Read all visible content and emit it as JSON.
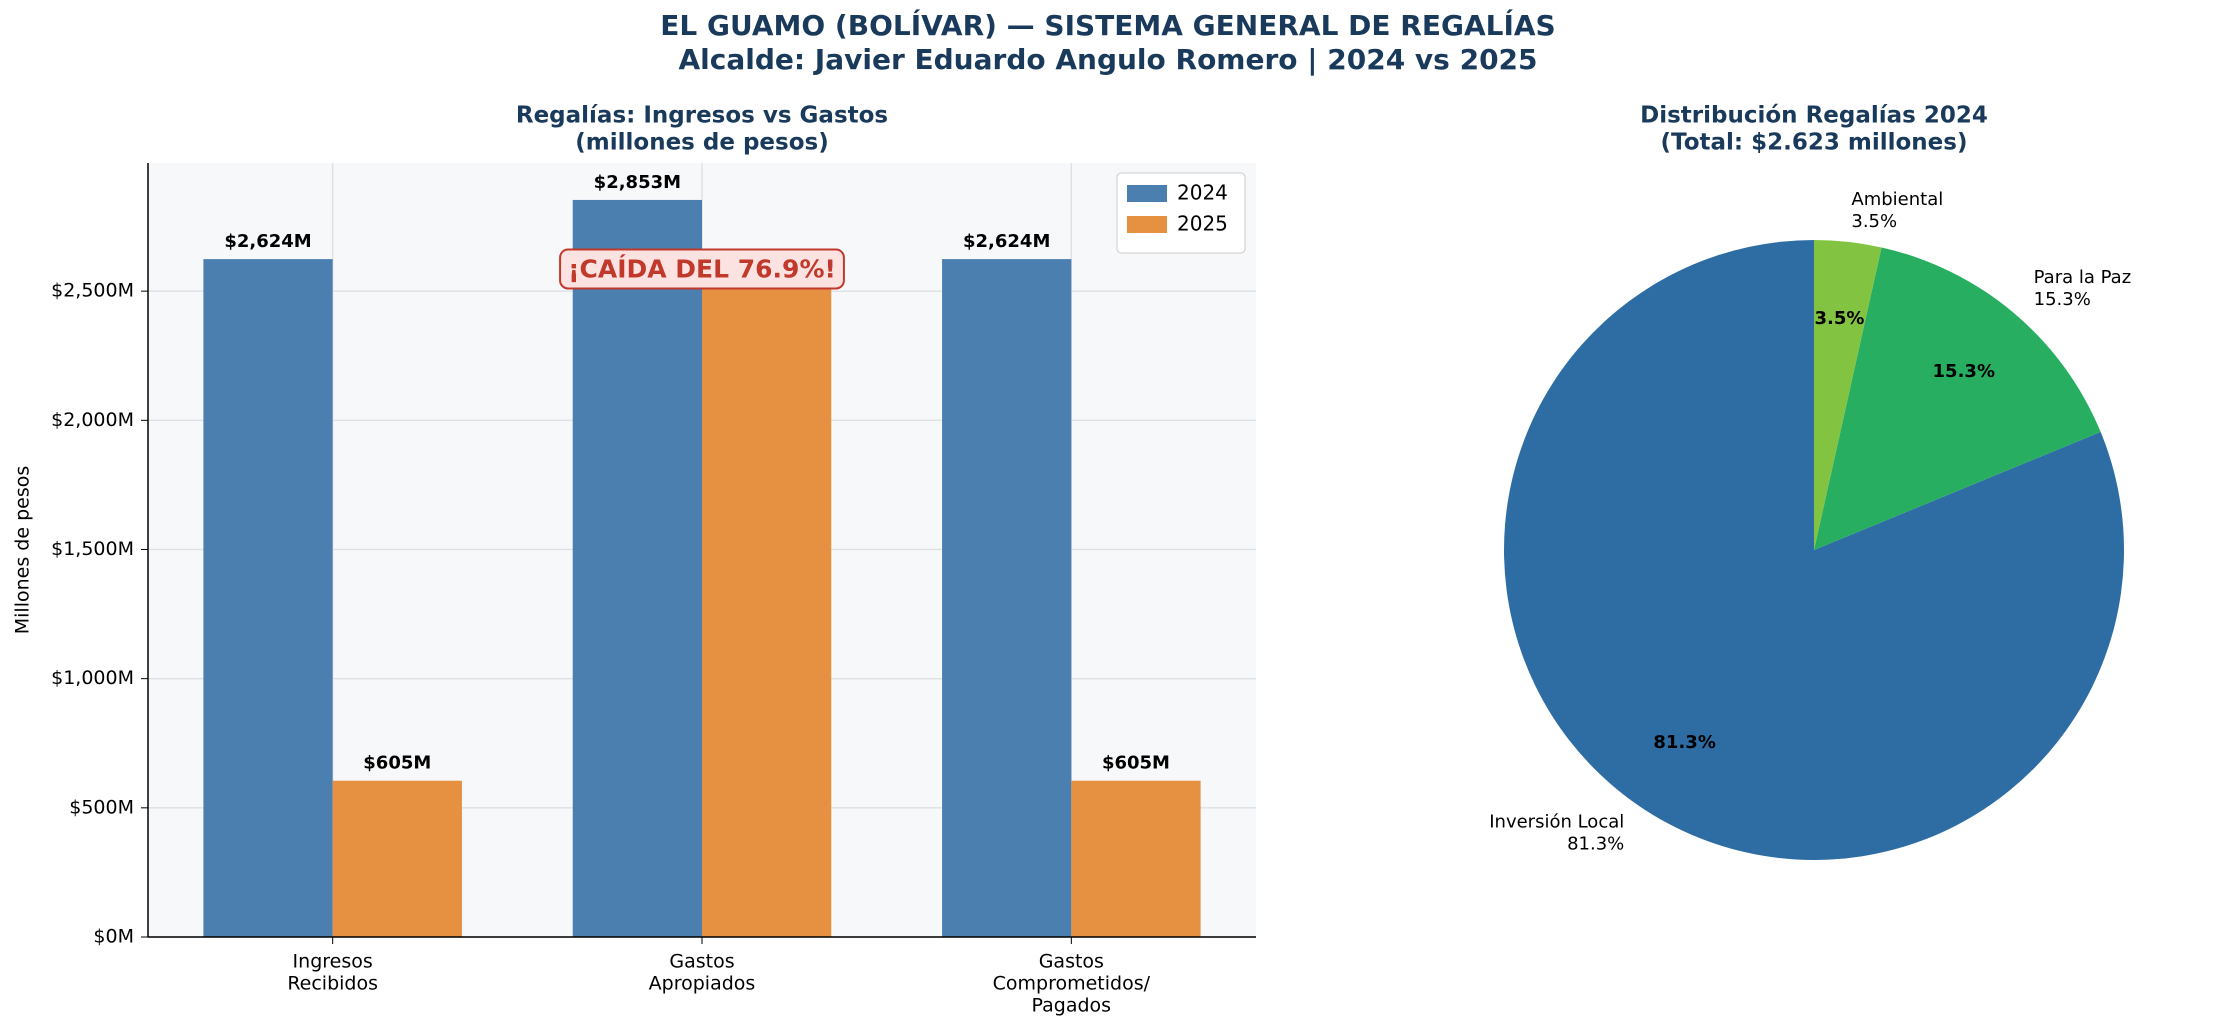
{
  "title": [
    "EL GUAMO (BOLÍVAR) — SISTEMA GENERAL DE REGALÍAS",
    "Alcalde: Javier Eduardo Angulo Romero | 2024 vs 2025"
  ],
  "chart_data": [
    {
      "type": "bar",
      "title": [
        "Regalías: Ingresos vs Gastos",
        "(millones de pesos)"
      ],
      "y_label": "Millones de pesos",
      "categories": [
        [
          "Ingresos",
          "Recibidos"
        ],
        [
          "Gastos",
          "Apropiados"
        ],
        [
          "Gastos",
          "Comprometidos/",
          "Pagados"
        ]
      ],
      "series": [
        {
          "name": "2024",
          "color": "#4a7fb0",
          "values": [
            2624,
            2853,
            2624
          ],
          "value_labels": [
            "$2,624M",
            "$2,853M",
            "$2,624M"
          ]
        },
        {
          "name": "2025",
          "color": "#e69142",
          "values": [
            605,
            2600,
            605
          ],
          "value_labels": [
            "$605M",
            null,
            "$605M"
          ]
        }
      ],
      "ylim": [
        0,
        2996
      ],
      "yticks": [
        {
          "value": 0,
          "label": "$0M"
        },
        {
          "value": 500,
          "label": "$500M"
        },
        {
          "value": 1000,
          "label": "$1,000M"
        },
        {
          "value": 1500,
          "label": "$1,500M"
        },
        {
          "value": 2000,
          "label": "$2,000M"
        },
        {
          "value": 2500,
          "label": "$2,500M"
        }
      ],
      "grid": true,
      "legend": "upper right",
      "annotation": {
        "text": "¡CAÍDA DEL 76.9%!",
        "category": 1,
        "y": 2580
      }
    },
    {
      "type": "pie",
      "title": [
        "Distribución Regalías 2024",
        "(Total: $2.623 millones)"
      ],
      "labels": [
        "Inversión Local",
        "Para la Paz",
        "Ambiental"
      ],
      "values": [
        81.3,
        15.3,
        3.5
      ],
      "value_labels": [
        "81.3%",
        "15.3%",
        "3.5%"
      ],
      "colors": [
        "#2e6da4",
        "#27ae60",
        "#82c341"
      ],
      "start_angle": 90
    }
  ]
}
